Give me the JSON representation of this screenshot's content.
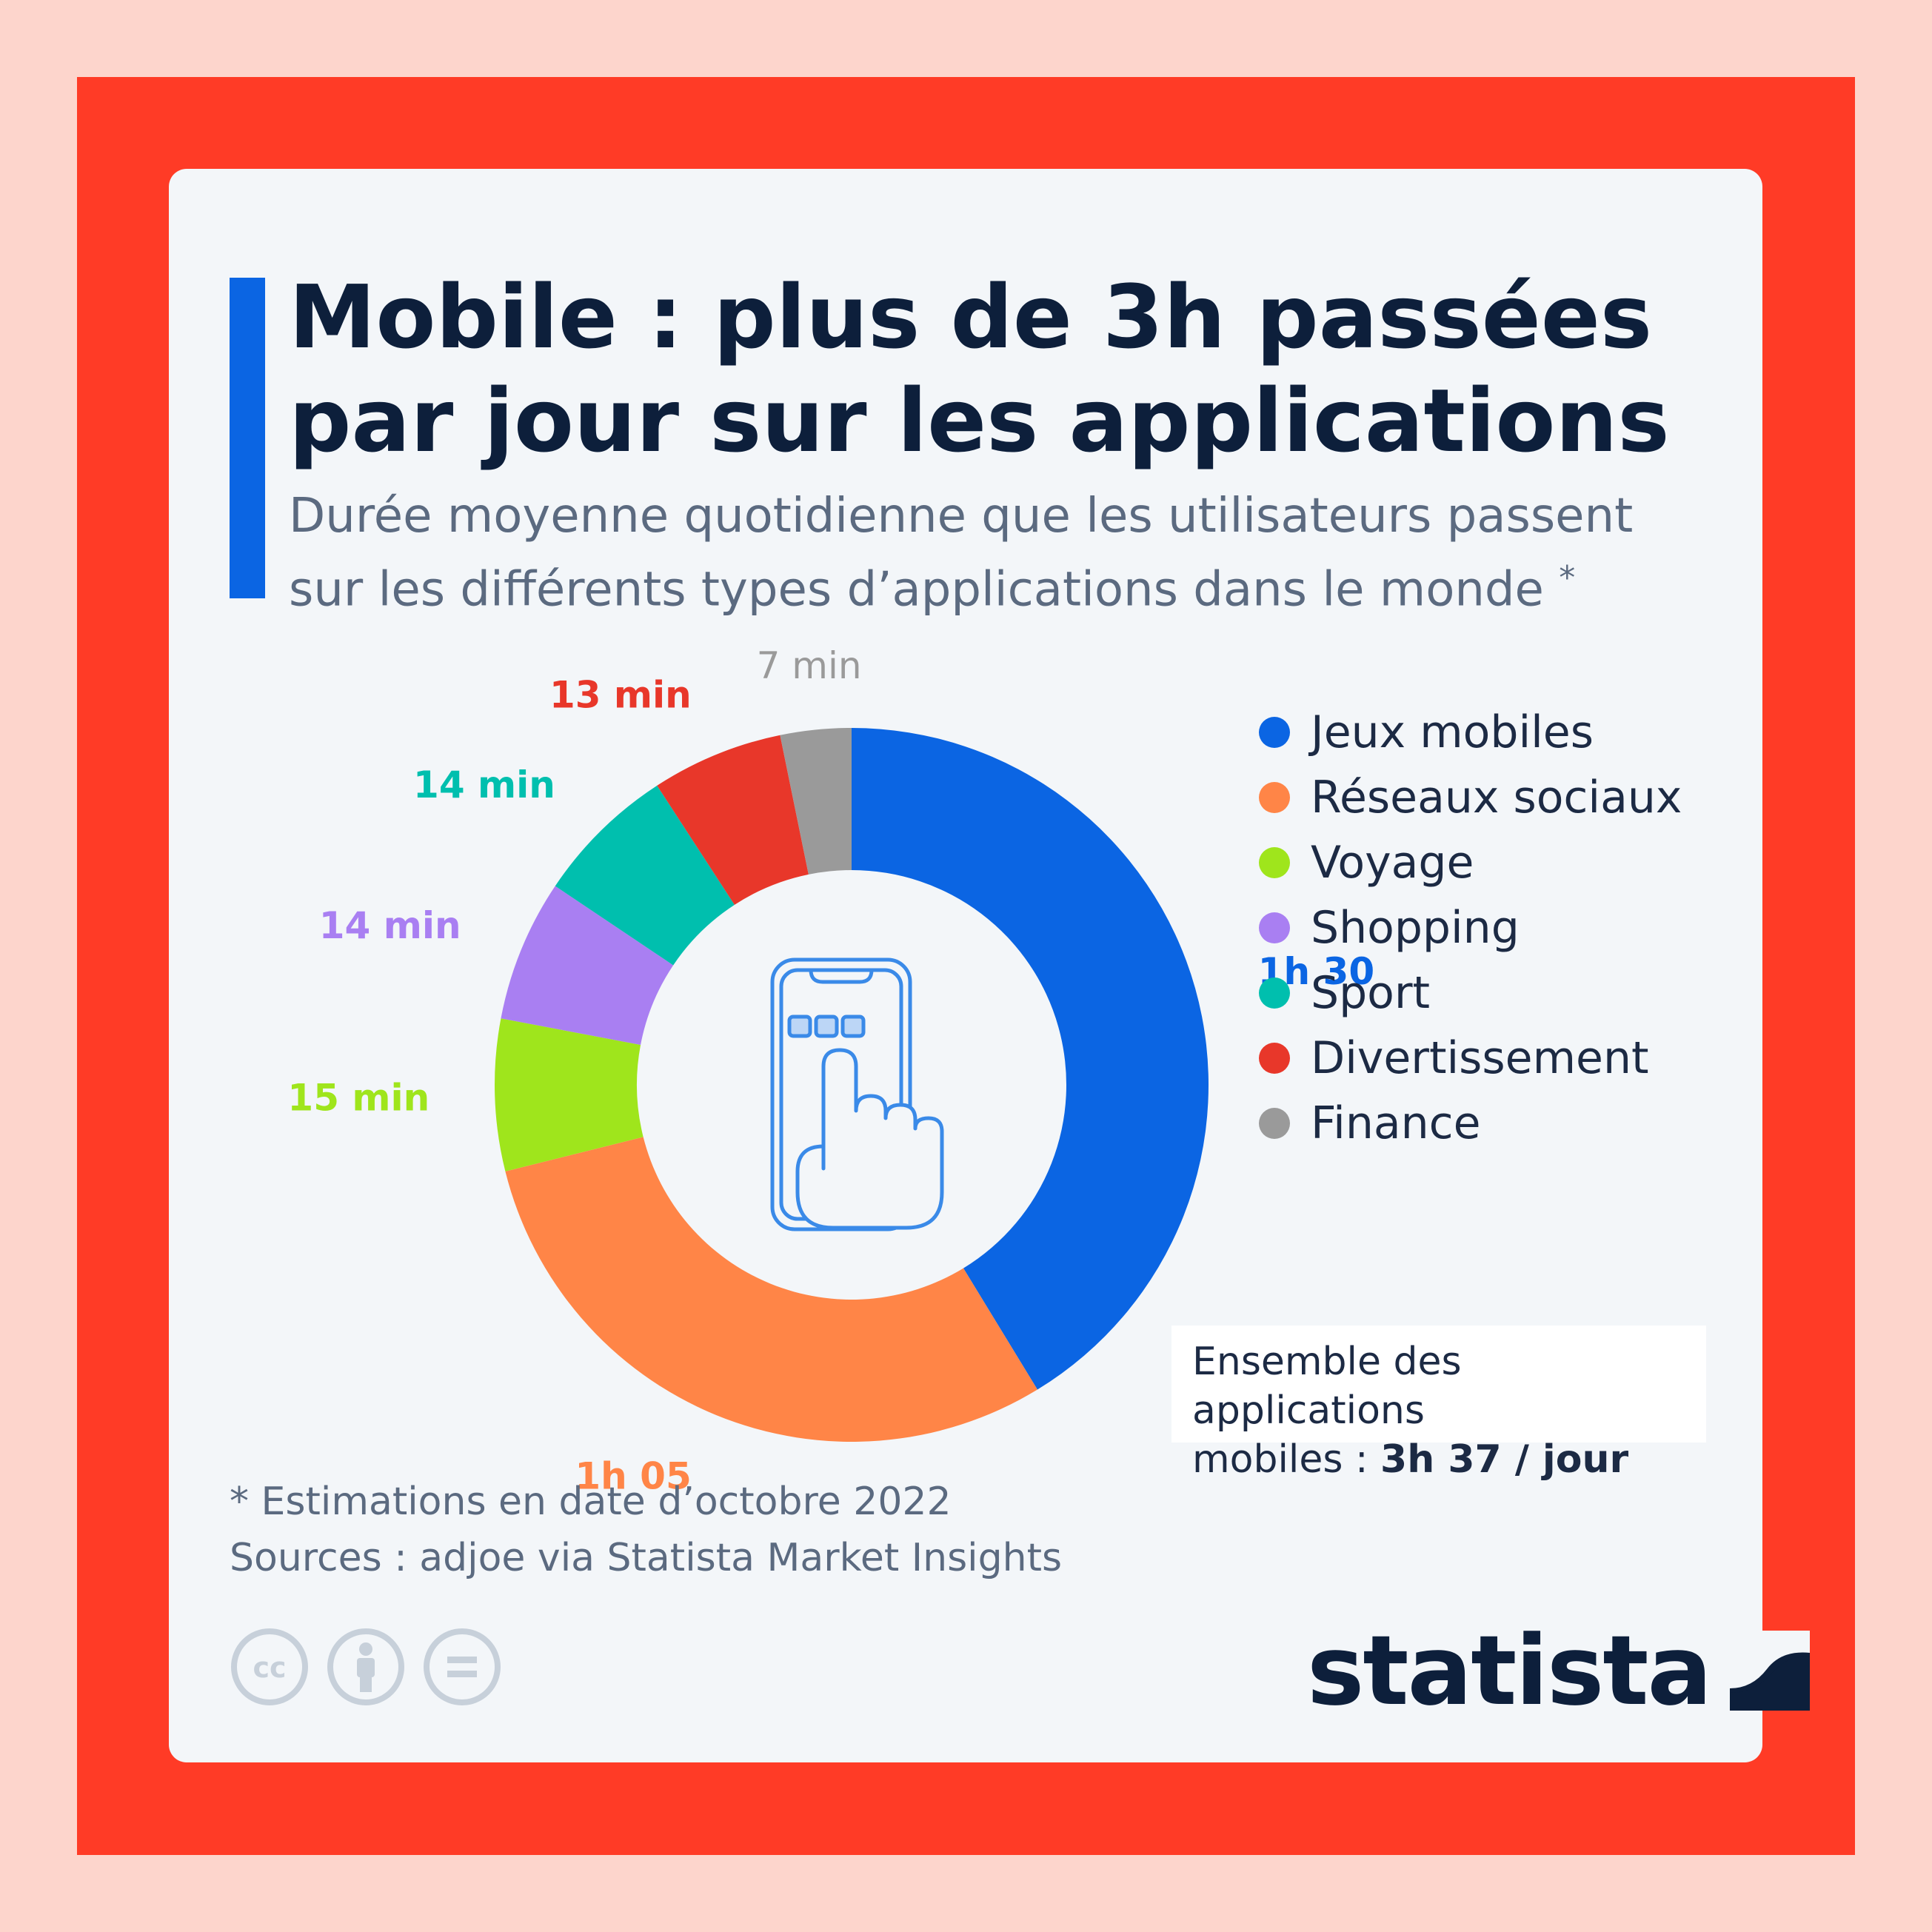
{
  "header": {
    "title_line1": "Mobile : plus de 3h passées",
    "title_line2": "par jour sur les applications",
    "subtitle_line1": "Durée moyenne quotidienne que les utilisateurs passent",
    "subtitle_line2": "sur les différents types d’applications dans le monde",
    "subtitle_mark": "*"
  },
  "colors": {
    "background": "#fdd5cc",
    "frame": "#ff3b26",
    "card": "#f3f6f9",
    "accent": "#0b65e3",
    "icon": "#3a8ae8"
  },
  "chart_data": {
    "type": "pie",
    "style": "donut",
    "center_icon": "smartphone-touch-icon",
    "unit": "minutes",
    "series": [
      {
        "name": "Jeux mobiles",
        "value": 90,
        "label": "1h 30",
        "color": "#0b65e3"
      },
      {
        "name": "Réseaux sociaux",
        "value": 65,
        "label": "1h 05",
        "color": "#ff8547"
      },
      {
        "name": "Voyage",
        "value": 15,
        "label": "15 min",
        "color": "#9fe51c"
      },
      {
        "name": "Shopping",
        "value": 14,
        "label": "14 min",
        "color": "#a97ff2"
      },
      {
        "name": "Sport",
        "value": 14,
        "label": "14 min",
        "color": "#00bfae"
      },
      {
        "name": "Divertissement",
        "value": 13,
        "label": "13 min",
        "color": "#e8372a"
      },
      {
        "name": "Finance",
        "value": 7,
        "label": "7 min",
        "color": "#9a9a9a"
      }
    ],
    "legend": [
      "Jeux mobiles",
      "Réseaux sociaux",
      "Voyage",
      "Shopping",
      "Sport",
      "Divertissement",
      "Finance"
    ]
  },
  "total": {
    "line1": "Ensemble des applications",
    "line2_prefix": "mobiles : ",
    "line2_value": "3h 37 / jour"
  },
  "footer": {
    "note": "* Estimations en date d’octobre 2022",
    "sources": "Sources : adjoe via Statista Market Insights",
    "license_icons": [
      "cc-icon",
      "attribution-icon",
      "no-derivatives-icon"
    ],
    "brand": "statista"
  }
}
